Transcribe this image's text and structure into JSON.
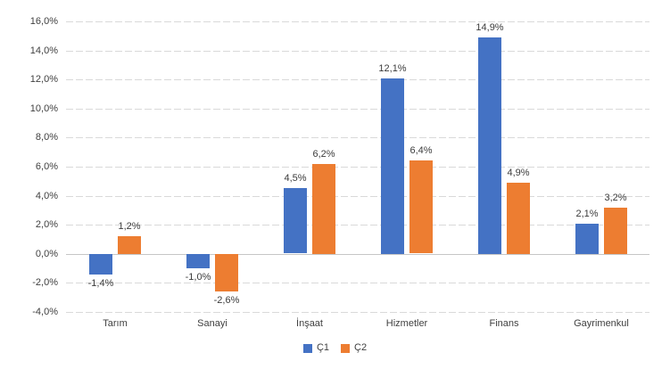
{
  "chart_data": {
    "type": "bar",
    "title": "",
    "xlabel": "",
    "ylabel": "",
    "categories": [
      "Tarım",
      "Sanayi",
      "İnşaat",
      "Hizmetler",
      "Finans",
      "Gayrimenkul"
    ],
    "series": [
      {
        "name": "Ç1",
        "color": "#4472C4",
        "values": [
          -1.4,
          -1.0,
          4.5,
          12.1,
          14.9,
          2.1
        ],
        "data_labels": [
          "-1,4%",
          "-1,0%",
          "4,5%",
          "12,1%",
          "14,9%",
          "2,1%"
        ]
      },
      {
        "name": "Ç2",
        "color": "#ED7D31",
        "values": [
          1.2,
          -2.6,
          6.2,
          6.4,
          4.9,
          3.2
        ],
        "data_labels": [
          "1,2%",
          "-2,6%",
          "6,2%",
          "6,4%",
          "4,9%",
          "3,2%"
        ]
      }
    ],
    "y_axis": {
      "min": -4,
      "max": 16,
      "step": 2,
      "tick_labels": [
        "16,0%",
        "14,0%",
        "12,0%",
        "10,0%",
        "8,0%",
        "6,0%",
        "4,0%",
        "2,0%",
        "0,0%",
        "-2,0%",
        "-4,0%"
      ]
    },
    "grid": true,
    "legend": {
      "position": "bottom",
      "entries": [
        "Ç1",
        "Ç2"
      ]
    },
    "colors": {
      "series1": "#4472C4",
      "series2": "#ED7D31",
      "gridline": "#D9D9D9",
      "zero_line": "#C6C6C6",
      "text": "#404040",
      "background": "#FFFFFF"
    }
  }
}
